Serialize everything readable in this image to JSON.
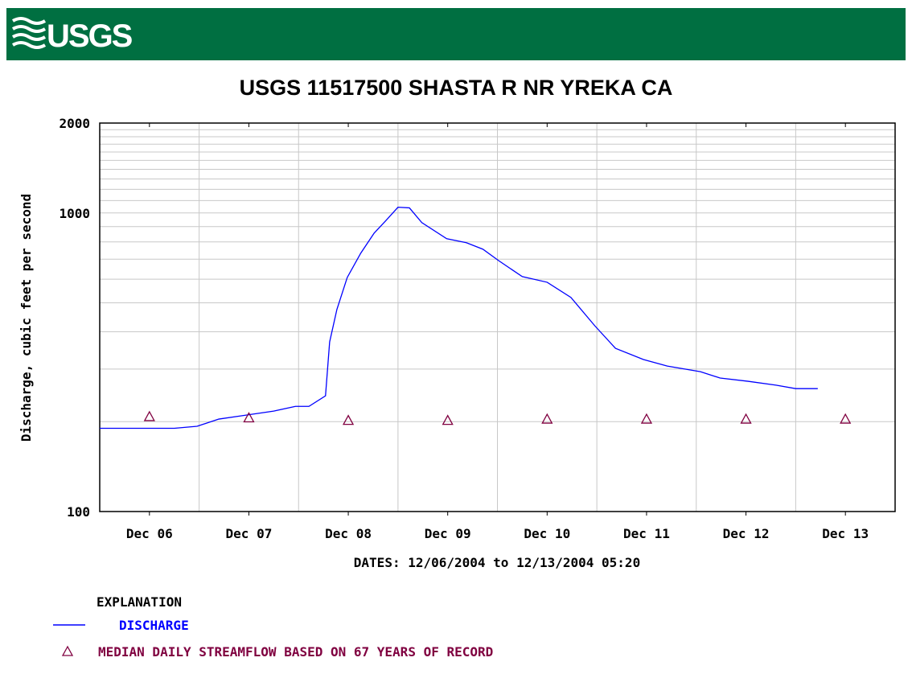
{
  "header": {
    "logo": "USGS"
  },
  "chart_data": {
    "type": "line",
    "title": "USGS 11517500 SHASTA R NR YREKA CA",
    "ylabel": "Discharge, cubic feet per second",
    "xlabel": "DATES: 12/06/2004 to 12/13/2004 05:20",
    "legend_title": "EXPLANATION",
    "ylog": true,
    "grid": true,
    "ylim": [
      100,
      2000
    ],
    "yticks": [
      100,
      1000,
      2000
    ],
    "minor_yticks": [
      200,
      300,
      400,
      500,
      600,
      700,
      800,
      900,
      1100,
      1200,
      1300,
      1400,
      1500,
      1600,
      1700,
      1800,
      1900
    ],
    "xlim": [
      "2004-12-06T00:00",
      "2004-12-14T00:00"
    ],
    "xticks": [
      {
        "value": "2004-12-06T12:00",
        "label": "Dec 06"
      },
      {
        "value": "2004-12-07T12:00",
        "label": "Dec 07"
      },
      {
        "value": "2004-12-08T12:00",
        "label": "Dec 08"
      },
      {
        "value": "2004-12-09T12:00",
        "label": "Dec 09"
      },
      {
        "value": "2004-12-10T12:00",
        "label": "Dec 10"
      },
      {
        "value": "2004-12-11T12:00",
        "label": "Dec 11"
      },
      {
        "value": "2004-12-12T12:00",
        "label": "Dec 12"
      },
      {
        "value": "2004-12-13T12:00",
        "label": "Dec 13"
      }
    ],
    "series": [
      {
        "name": "DISCHARGE",
        "color": "#0000ff",
        "marker": "line",
        "x": [
          "2004-12-06T00:00",
          "2004-12-06T18:00",
          "2004-12-06T23:30",
          "2004-12-07T04:45",
          "2004-12-07T10:00",
          "2004-12-07T18:00",
          "2004-12-07T23:15",
          "2004-12-08T02:30",
          "2004-12-08T06:30",
          "2004-12-08T07:30",
          "2004-12-08T09:15",
          "2004-12-08T11:45",
          "2004-12-08T15:00",
          "2004-12-08T18:15",
          "2004-12-08T21:00",
          "2004-12-09T00:00",
          "2004-12-09T02:45",
          "2004-12-09T05:45",
          "2004-12-09T11:45",
          "2004-12-09T16:30",
          "2004-12-09T20:30",
          "2004-12-10T00:15",
          "2004-12-10T06:00",
          "2004-12-10T12:00",
          "2004-12-10T17:45",
          "2004-12-10T23:30",
          "2004-12-11T04:30",
          "2004-12-11T11:15",
          "2004-12-11T17:00",
          "2004-12-12T01:00",
          "2004-12-12T05:45",
          "2004-12-12T12:30",
          "2004-12-12T19:15",
          "2004-12-13T00:00",
          "2004-12-13T05:20"
        ],
        "values": [
          190,
          190,
          193,
          204,
          209,
          217,
          225,
          225,
          244,
          370,
          475,
          608,
          733,
          856,
          940,
          1045,
          1040,
          928,
          820,
          795,
          756,
          693,
          612,
          586,
          521,
          419,
          352,
          323,
          307,
          294,
          280,
          273,
          265,
          258,
          258
        ]
      },
      {
        "name": "MEDIAN DAILY STREAMFLOW BASED ON 67 YEARS OF RECORD",
        "color": "#800040",
        "marker": "triangle",
        "x": [
          "2004-12-06T12:00",
          "2004-12-07T12:00",
          "2004-12-08T12:00",
          "2004-12-09T12:00",
          "2004-12-10T12:00",
          "2004-12-11T12:00",
          "2004-12-12T12:00",
          "2004-12-13T12:00"
        ],
        "values": [
          208,
          206,
          202,
          202,
          204,
          204,
          204,
          204
        ]
      }
    ]
  }
}
